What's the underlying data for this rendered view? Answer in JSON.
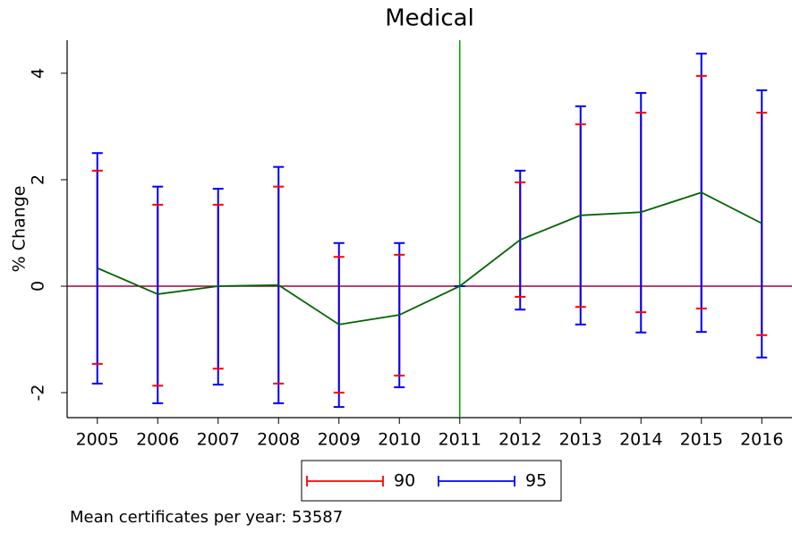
{
  "chart_data": {
    "type": "line_ci",
    "title": "Medical",
    "y_label": "% Change",
    "x": [
      2005,
      2006,
      2007,
      2008,
      2009,
      2010,
      2011,
      2012,
      2013,
      2014,
      2015,
      2016
    ],
    "values": [
      0.34,
      -0.15,
      0,
      0.02,
      -0.72,
      -0.54,
      0,
      0.87,
      1.33,
      1.39,
      1.76,
      1.18
    ],
    "line_color": "#006400",
    "intervals": [
      {
        "name": "90",
        "color": "#ff0000",
        "lower": [
          -1.46,
          -1.87,
          -1.55,
          -1.83,
          -2.0,
          -1.68,
          0,
          -0.2,
          -0.39,
          -0.49,
          -0.42,
          -0.92
        ],
        "upper": [
          2.17,
          1.53,
          1.53,
          1.87,
          0.55,
          0.59,
          0,
          1.95,
          3.04,
          3.26,
          3.95,
          3.26
        ]
      },
      {
        "name": "95",
        "color": "#0000ff",
        "lower": [
          -1.83,
          -2.2,
          -1.85,
          -2.2,
          -2.27,
          -1.9,
          0,
          -0.44,
          -0.72,
          -0.87,
          -0.86,
          -1.34
        ],
        "upper": [
          2.5,
          1.87,
          1.83,
          2.24,
          0.81,
          0.81,
          0,
          2.17,
          3.38,
          3.63,
          4.37,
          3.68
        ]
      }
    ],
    "xlim": [
      2004.5,
      2016.5
    ],
    "xticks": [
      2005,
      2006,
      2007,
      2008,
      2009,
      2010,
      2011,
      2012,
      2013,
      2014,
      2015,
      2016
    ],
    "ylim": [
      -2.47,
      4.62
    ],
    "yticks": [
      -2,
      0,
      2,
      4
    ],
    "vline": 2011,
    "vline_color": "#00a000",
    "hline": 0,
    "hline_color": "#a0003c",
    "note": "Mean certificates per year: 53587"
  }
}
